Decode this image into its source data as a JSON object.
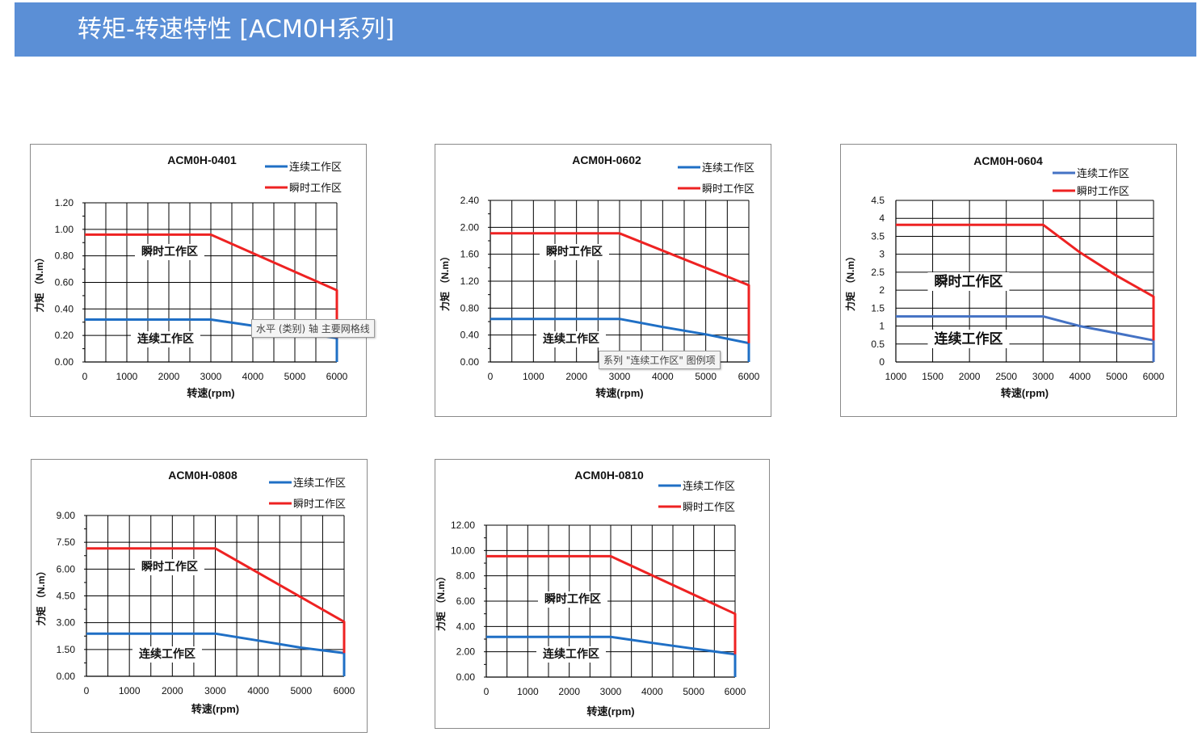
{
  "header": {
    "title": "转矩-转速特性 [ACM0H系列]"
  },
  "colors": {
    "header_bg": "#5b8fd6",
    "continuous": "#1f6fc5",
    "continuous_light": "#4472c4",
    "instant": "#ee2222"
  },
  "tooltips": [
    {
      "chart": 0,
      "text": "水平 (类别) 轴 主要网格线"
    },
    {
      "chart": 1,
      "text": "系列 \"连续工作区\" 图例项"
    }
  ],
  "chart_data": [
    {
      "type": "line",
      "title": "ACM0H-0401",
      "xlabel": "转速(rpm)",
      "ylabel": "力矩 （N.m）",
      "x_ticks": [
        "0",
        "1000",
        "2000",
        "3000",
        "4000",
        "5000",
        "6000"
      ],
      "xlim": [
        0,
        6000
      ],
      "y_ticks": [
        "0.00",
        "0.20",
        "0.40",
        "0.60",
        "0.80",
        "1.00",
        "1.20"
      ],
      "ylim": [
        0,
        1.2
      ],
      "legend": [
        "连续工作区",
        "瞬时工作区"
      ],
      "region_labels": {
        "instant": "瞬时工作区",
        "continuous": "连续工作区"
      },
      "series": [
        {
          "name": "连续工作区",
          "x": [
            0,
            3000,
            6000,
            6000
          ],
          "y": [
            0.32,
            0.32,
            0.18,
            0
          ]
        },
        {
          "name": "瞬时工作区",
          "x": [
            0,
            3000,
            6000,
            6000
          ],
          "y": [
            0.96,
            0.96,
            0.54,
            0.18
          ]
        }
      ]
    },
    {
      "type": "line",
      "title": "ACM0H-0602",
      "xlabel": "转速(rpm)",
      "ylabel": "力矩 （N.m）",
      "x_ticks": [
        "0",
        "1000",
        "2000",
        "3000",
        "4000",
        "5000",
        "6000"
      ],
      "xlim": [
        0,
        6000
      ],
      "y_ticks": [
        "0.00",
        "0.40",
        "0.80",
        "1.20",
        "1.60",
        "2.00",
        "2.40"
      ],
      "ylim": [
        0,
        2.4
      ],
      "legend": [
        "连续工作区",
        "瞬时工作区"
      ],
      "region_labels": {
        "instant": "瞬时工作区",
        "continuous": "连续工作区"
      },
      "series": [
        {
          "name": "连续工作区",
          "x": [
            0,
            3000,
            4000,
            5000,
            6000,
            6000
          ],
          "y": [
            0.64,
            0.64,
            0.52,
            0.41,
            0.28,
            0
          ]
        },
        {
          "name": "瞬时工作区",
          "x": [
            0,
            3000,
            6000,
            6000
          ],
          "y": [
            1.91,
            1.91,
            1.14,
            0.28
          ]
        }
      ]
    },
    {
      "type": "line",
      "title": "ACM0H-0604",
      "xlabel": "转速(rpm)",
      "ylabel": "力矩 （N.m）",
      "x_ticks": [
        "1000",
        "1500",
        "2000",
        "2500",
        "3000",
        "4000",
        "5000",
        "6000"
      ],
      "xlim": [
        0,
        7
      ],
      "y_ticks": [
        "0",
        "0.5",
        "1",
        "1.5",
        "2",
        "2.5",
        "3",
        "3.5",
        "4",
        "4.5"
      ],
      "ylim": [
        0,
        4.5
      ],
      "legend": [
        "连续工作区",
        "瞬时工作区"
      ],
      "region_labels": {
        "instant": "瞬时工作区",
        "continuous": "连续工作区"
      },
      "series": [
        {
          "name": "连续工作区",
          "x": [
            0,
            4,
            5,
            6,
            7,
            7
          ],
          "y": [
            1.27,
            1.27,
            1.0,
            0.8,
            0.6,
            0
          ]
        },
        {
          "name": "瞬时工作区",
          "x": [
            0,
            4,
            5,
            6,
            7,
            7
          ],
          "y": [
            3.82,
            3.82,
            3.05,
            2.4,
            1.82,
            0.6
          ]
        }
      ]
    },
    {
      "type": "line",
      "title": "ACM0H-0808",
      "xlabel": "转速(rpm)",
      "ylabel": "力矩 （N.m）",
      "x_ticks": [
        "0",
        "1000",
        "2000",
        "3000",
        "4000",
        "5000",
        "6000"
      ],
      "xlim": [
        0,
        6000
      ],
      "y_ticks": [
        "0.00",
        "1.50",
        "3.00",
        "4.50",
        "6.00",
        "7.50",
        "9.00"
      ],
      "ylim": [
        0,
        9
      ],
      "legend": [
        "连续工作区",
        "瞬时工作区"
      ],
      "region_labels": {
        "instant": "瞬时工作区",
        "continuous": "连续工作区"
      },
      "series": [
        {
          "name": "连续工作区",
          "x": [
            0,
            3000,
            4000,
            5000,
            6000,
            6000
          ],
          "y": [
            2.39,
            2.39,
            2.0,
            1.6,
            1.3,
            0
          ]
        },
        {
          "name": "瞬时工作区",
          "x": [
            0,
            3000,
            6000,
            6000
          ],
          "y": [
            7.16,
            7.16,
            3.05,
            1.3
          ]
        }
      ]
    },
    {
      "type": "line",
      "title": "ACM0H-0810",
      "xlabel": "转速(rpm)",
      "ylabel": "力矩 （N.m）",
      "x_ticks": [
        "0",
        "1000",
        "2000",
        "3000",
        "4000",
        "5000",
        "6000"
      ],
      "xlim": [
        0,
        6000
      ],
      "y_ticks": [
        "0.00",
        "2.00",
        "4.00",
        "6.00",
        "8.00",
        "10.00",
        "12.00"
      ],
      "ylim": [
        0,
        12
      ],
      "legend": [
        "连续工作区",
        "瞬时工作区"
      ],
      "region_labels": {
        "instant": "瞬时工作区",
        "continuous": "连续工作区"
      },
      "series": [
        {
          "name": "连续工作区",
          "x": [
            0,
            3000,
            4000,
            5000,
            6000,
            6000
          ],
          "y": [
            3.18,
            3.18,
            2.7,
            2.25,
            1.8,
            0
          ]
        },
        {
          "name": "瞬时工作区",
          "x": [
            0,
            3000,
            6000,
            6000
          ],
          "y": [
            9.55,
            9.55,
            5.0,
            1.8
          ]
        }
      ]
    }
  ]
}
